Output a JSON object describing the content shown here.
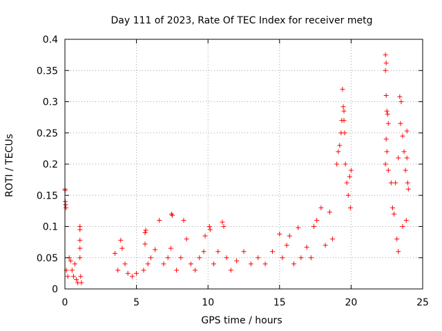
{
  "chart_data": {
    "type": "scatter",
    "title": "Day 111 of 2023, Rate Of TEC Index for receiver metg",
    "xlabel": "GPS time / hours",
    "ylabel": "ROTI / TECUs",
    "xlim": [
      0,
      25
    ],
    "ylim": [
      0,
      0.4
    ],
    "xticks": [
      0,
      5,
      10,
      15,
      20,
      25
    ],
    "xtick_labels": [
      "0",
      "5",
      "10",
      "15",
      "20",
      "25"
    ],
    "yticks": [
      0,
      0.05,
      0.1,
      0.15,
      0.2,
      0.25,
      0.3,
      0.35,
      0.4
    ],
    "ytick_labels": [
      "0",
      "0.05",
      "0.1",
      "0.15",
      "0.2",
      "0.25",
      "0.3",
      "0.35",
      "0.4"
    ],
    "grid": true,
    "marker": "+",
    "color": "#ff0000",
    "series": [
      {
        "points": [
          [
            0.0,
            0.16
          ],
          [
            0.02,
            0.158
          ],
          [
            0.05,
            0.135
          ],
          [
            0.07,
            0.13
          ],
          [
            0.03,
            0.14
          ],
          [
            0.1,
            0.03
          ],
          [
            0.2,
            0.02
          ],
          [
            0.3,
            0.05
          ],
          [
            0.4,
            0.045
          ],
          [
            0.5,
            0.03
          ],
          [
            0.6,
            0.02
          ],
          [
            0.7,
            0.04
          ],
          [
            0.8,
            0.015
          ],
          [
            0.9,
            0.01
          ],
          [
            1.05,
            0.1
          ],
          [
            1.05,
            0.095
          ],
          [
            1.05,
            0.078
          ],
          [
            1.05,
            0.065
          ],
          [
            1.05,
            0.05
          ],
          [
            1.1,
            0.02
          ],
          [
            1.15,
            0.01
          ],
          [
            3.5,
            0.057
          ],
          [
            3.7,
            0.03
          ],
          [
            3.9,
            0.078
          ],
          [
            4.0,
            0.065
          ],
          [
            4.2,
            0.04
          ],
          [
            4.4,
            0.025
          ],
          [
            4.7,
            0.02
          ],
          [
            5.0,
            0.025
          ],
          [
            5.5,
            0.03
          ],
          [
            5.6,
            0.072
          ],
          [
            5.6,
            0.09
          ],
          [
            5.65,
            0.094
          ],
          [
            5.8,
            0.04
          ],
          [
            6.0,
            0.05
          ],
          [
            6.3,
            0.063
          ],
          [
            6.6,
            0.11
          ],
          [
            6.9,
            0.04
          ],
          [
            7.2,
            0.05
          ],
          [
            7.4,
            0.065
          ],
          [
            7.45,
            0.12
          ],
          [
            7.5,
            0.118
          ],
          [
            7.8,
            0.03
          ],
          [
            8.1,
            0.05
          ],
          [
            8.3,
            0.11
          ],
          [
            8.5,
            0.08
          ],
          [
            8.8,
            0.04
          ],
          [
            9.1,
            0.03
          ],
          [
            9.4,
            0.05
          ],
          [
            9.7,
            0.06
          ],
          [
            9.8,
            0.085
          ],
          [
            10.1,
            0.1
          ],
          [
            10.15,
            0.095
          ],
          [
            10.4,
            0.04
          ],
          [
            10.7,
            0.06
          ],
          [
            11.0,
            0.107
          ],
          [
            11.1,
            0.1
          ],
          [
            11.3,
            0.05
          ],
          [
            11.6,
            0.03
          ],
          [
            12.0,
            0.045
          ],
          [
            12.5,
            0.06
          ],
          [
            13.0,
            0.04
          ],
          [
            13.5,
            0.05
          ],
          [
            14.0,
            0.04
          ],
          [
            14.5,
            0.06
          ],
          [
            15.0,
            0.088
          ],
          [
            15.2,
            0.05
          ],
          [
            15.5,
            0.07
          ],
          [
            15.7,
            0.085
          ],
          [
            16.0,
            0.04
          ],
          [
            16.3,
            0.098
          ],
          [
            16.5,
            0.05
          ],
          [
            16.9,
            0.067
          ],
          [
            17.2,
            0.05
          ],
          [
            17.4,
            0.1
          ],
          [
            17.6,
            0.11
          ],
          [
            17.9,
            0.13
          ],
          [
            18.2,
            0.07
          ],
          [
            18.5,
            0.123
          ],
          [
            18.7,
            0.08
          ],
          [
            19.0,
            0.2
          ],
          [
            19.1,
            0.22
          ],
          [
            19.2,
            0.23
          ],
          [
            19.3,
            0.25
          ],
          [
            19.35,
            0.27
          ],
          [
            19.4,
            0.32
          ],
          [
            19.45,
            0.292
          ],
          [
            19.5,
            0.285
          ],
          [
            19.5,
            0.27
          ],
          [
            19.55,
            0.25
          ],
          [
            19.6,
            0.2
          ],
          [
            19.7,
            0.17
          ],
          [
            19.8,
            0.15
          ],
          [
            19.9,
            0.18
          ],
          [
            20.0,
            0.19
          ],
          [
            19.95,
            0.13
          ],
          [
            22.4,
            0.375
          ],
          [
            22.45,
            0.362
          ],
          [
            22.4,
            0.35
          ],
          [
            22.45,
            0.31
          ],
          [
            22.5,
            0.285
          ],
          [
            22.55,
            0.28
          ],
          [
            22.6,
            0.265
          ],
          [
            22.45,
            0.24
          ],
          [
            22.5,
            0.22
          ],
          [
            22.4,
            0.2
          ],
          [
            22.6,
            0.19
          ],
          [
            22.8,
            0.17
          ],
          [
            22.9,
            0.13
          ],
          [
            23.0,
            0.12
          ],
          [
            23.1,
            0.17
          ],
          [
            23.3,
            0.21
          ],
          [
            23.4,
            0.308
          ],
          [
            23.5,
            0.3
          ],
          [
            23.45,
            0.265
          ],
          [
            23.6,
            0.245
          ],
          [
            23.7,
            0.22
          ],
          [
            23.8,
            0.19
          ],
          [
            23.9,
            0.253
          ],
          [
            23.9,
            0.21
          ],
          [
            23.95,
            0.17
          ],
          [
            24.0,
            0.16
          ],
          [
            23.2,
            0.08
          ],
          [
            23.6,
            0.1
          ],
          [
            23.85,
            0.11
          ],
          [
            23.3,
            0.06
          ]
        ]
      }
    ]
  }
}
